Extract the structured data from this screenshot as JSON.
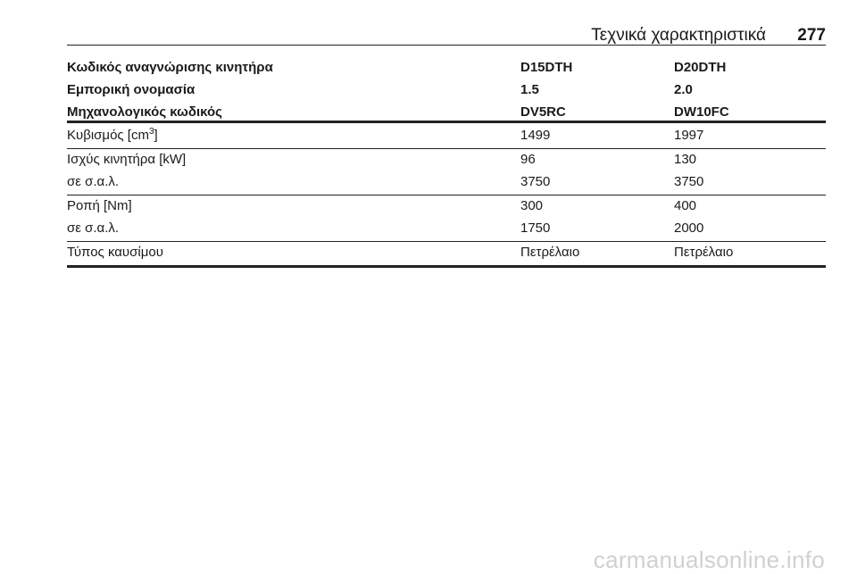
{
  "header": {
    "title": "Τεχνικά χαρακτηριστικά",
    "page": "277"
  },
  "table": {
    "head": [
      [
        "Κωδικός αναγνώρισης κινητήρα",
        "D15DTH",
        "D20DTH"
      ],
      [
        "Εμπορική ονομασία",
        "1.5",
        "2.0"
      ],
      [
        "Μηχανολογικός κωδικός",
        "DV5RC",
        "DW10FC"
      ]
    ],
    "groups": [
      [
        [
          {
            "text": "Κυβισμός [cm",
            "sup": "3",
            "after": "]"
          },
          "1499",
          "1997"
        ]
      ],
      [
        [
          "Ισχύς κινητήρα [kW]",
          "96",
          "130"
        ],
        [
          "σε σ.α.λ.",
          "3750",
          "3750"
        ]
      ],
      [
        [
          "Ροπή [Nm]",
          "300",
          "400"
        ],
        [
          "σε σ.α.λ.",
          "1750",
          "2000"
        ]
      ],
      [
        [
          "Τύπος καυσίμου",
          "Πετρέλαιο",
          "Πετρέλαιο"
        ]
      ]
    ]
  },
  "watermark": "carmanualsonline.info"
}
